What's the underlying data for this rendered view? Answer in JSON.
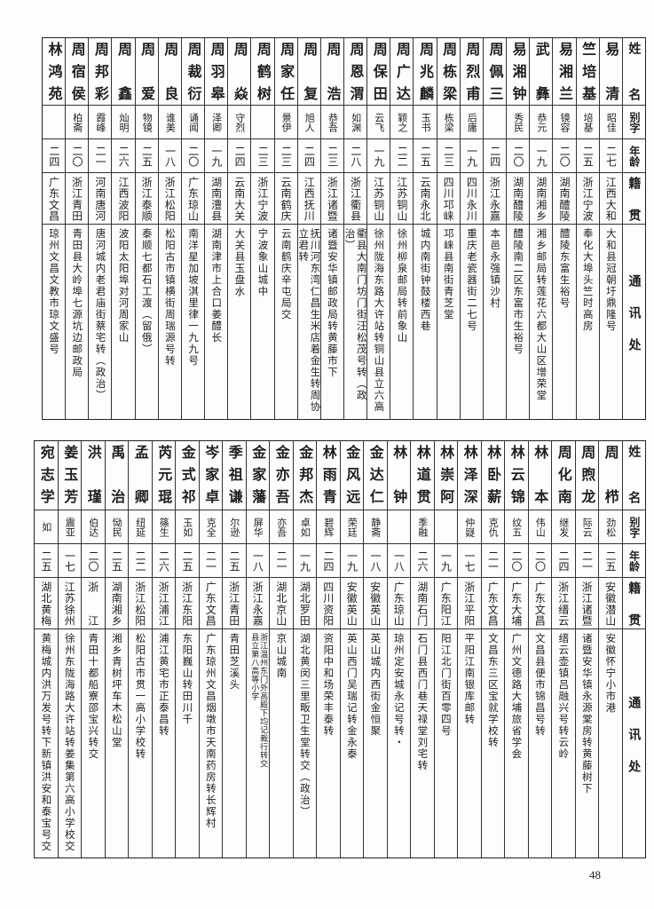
{
  "headers": {
    "name": "姓名",
    "alias": "别字",
    "age": "年龄",
    "native": "籍贯",
    "address": "通讯处"
  },
  "top_table": [
    {
      "name": "易清",
      "alias": "昭佳",
      "age": "二七",
      "native": "江西大和",
      "address": "大和县冠朝圩鼎隆号"
    },
    {
      "name": "竺培基",
      "alias": "培基",
      "age": "二五",
      "native": "浙江宁波",
      "address": "奉化大埠头竺时高房"
    },
    {
      "name": "易湘兰",
      "alias": "镜容",
      "age": "二〇",
      "native": "湖南醴陵",
      "address": "醴陵东富生裕号"
    },
    {
      "name": "武彝",
      "alias": "恭元",
      "age": "一九",
      "native": "湖南湘乡",
      "address": "湘乡邮局转莲花六都大山区增荣堂"
    },
    {
      "name": "易湘钟",
      "alias": "秀民",
      "age": "二〇",
      "native": "湖南醴陵",
      "address": "醴陵南二区东富市生裕号"
    },
    {
      "name": "周佩三",
      "alias": "",
      "age": "二四",
      "native": "浙江永嘉",
      "address": "本邑永强镇沙村"
    },
    {
      "name": "周烈甫",
      "alias": "后庸",
      "age": "一九",
      "native": "四川永川",
      "address": "重庆老瓷器街二七号"
    },
    {
      "name": "周栋梁",
      "alias": "栋梁",
      "age": "二三",
      "native": "四川邛崃",
      "address": "邛崃县南街青芝堂"
    },
    {
      "name": "周兆麟",
      "alias": "玉书",
      "age": "二五",
      "native": "云南永北",
      "address": "城内南街钟鼓楼西巷"
    },
    {
      "name": "周广达",
      "alias": "颖之",
      "age": "二二",
      "native": "江苏铜山",
      "address": "徐州柳泉邮局转前象山"
    },
    {
      "name": "周保田",
      "alias": "云飞",
      "age": "一九",
      "native": "江苏铜山",
      "address": "徐州陇海东路大许站转铜山县立六高"
    },
    {
      "name": "周恩渭",
      "alias": "如渊",
      "age": "二八",
      "native": "浙江衢县",
      "address": "衢县大南门坊门街汪松茂号转（政治）"
    },
    {
      "name": "周浩",
      "alias": "恭吾",
      "age": "二三",
      "native": "浙江诸暨",
      "address": "诸暨安华镇邮政局转黄藤市下"
    },
    {
      "name": "周复",
      "alias": "旭人",
      "age": "二四",
      "native": "江西抚川",
      "address": "抚川河东湾仁昌生米店着金生转周协立君转"
    },
    {
      "name": "周家任",
      "alias": "景伊",
      "age": "二三",
      "native": "云南鹤庆",
      "address": "云南鹤庆辛屯局交"
    },
    {
      "name": "周鹤树",
      "alias": "",
      "age": "二三",
      "native": "浙江宁波",
      "address": "宁波象山城中"
    },
    {
      "name": "周焱",
      "alias": "守烈",
      "age": "二四",
      "native": "云南大关",
      "address": "大关县玉盘水"
    },
    {
      "name": "周羽皋",
      "alias": "泽卿",
      "age": "一九",
      "native": "湖南澧县",
      "address": "湖南津市上合口姜醴长"
    },
    {
      "name": "周裁衍",
      "alias": "诵闻",
      "age": "二〇",
      "native": "广东琼山",
      "address": "南洋星加坡淇里律一九九号"
    },
    {
      "name": "周良",
      "alias": "谁美",
      "age": "一八",
      "native": "浙江松阳",
      "address": "松阳古市镇横街周瑞源号转"
    },
    {
      "name": "周爱",
      "alias": "物镜",
      "age": "二五",
      "native": "浙江泰顺",
      "address": "泰顺七都石工渡（留俄）"
    },
    {
      "name": "周鑫",
      "alias": "灿明",
      "age": "二六",
      "native": "江西波阳",
      "address": "波阳太阳埠对河周家山"
    },
    {
      "name": "周邦彩",
      "alias": "霞峰",
      "age": "二一",
      "native": "河南唐河",
      "address": "唐河城内老君庙街蔡宅转（政治）"
    },
    {
      "name": "周宿侯",
      "alias": "柏斋",
      "age": "二〇",
      "native": "浙江青田",
      "address": "青田县大岭埠七源坑边邮政局"
    },
    {
      "name": "林鸿苑",
      "alias": "",
      "age": "二四",
      "native": "广东文昌",
      "address": "琼州文昌文教市琼文盛号"
    }
  ],
  "bottom_table": [
    {
      "name": "周栉",
      "alias": "劲松",
      "age": "二五",
      "native": "安徽潜山",
      "address": "安徽怀宁小市港"
    },
    {
      "name": "周煦龙",
      "alias": "际云",
      "age": "二一",
      "native": "浙江诸暨",
      "address": "诸暨安华镇永源棠房转黄藤树下"
    },
    {
      "name": "周化南",
      "alias": "继发",
      "age": "二四",
      "native": "浙江缙云",
      "address": "缙云壶镇吕融兴号转云岭"
    },
    {
      "name": "林本",
      "alias": "伟山",
      "age": "二〇",
      "native": "广东文昌",
      "address": "文昌县便市锦昌号转"
    },
    {
      "name": "林云锦",
      "alias": "纹五",
      "age": "二〇",
      "native": "广东大埔",
      "address": "广州文德路大埔旅省学会"
    },
    {
      "name": "林卧薪",
      "alias": "克仇",
      "age": "二一",
      "native": "广东文昌",
      "address": "文昌东三区宝就学校转"
    },
    {
      "name": "林泽深",
      "alias": "仲嶷",
      "age": "一七",
      "native": "浙江平阳",
      "address": "平阳江南银库邮转"
    },
    {
      "name": "林崇阿",
      "alias": "",
      "age": "一九",
      "native": "广东阳江",
      "address": "阳江北门街百零四号"
    },
    {
      "name": "林道贯",
      "alias": "季融",
      "age": "二六",
      "native": "湖南石门",
      "address": "石门县西门巷天禄堂刘宅转"
    },
    {
      "name": "林钟",
      "alias": "",
      "age": "一八",
      "native": "广东琼山",
      "address": "琼州定安城永记号转・"
    },
    {
      "name": "金达仁",
      "alias": "静斋",
      "age": "一八",
      "native": "安徽英山",
      "address": "英山城内西街金恒聚"
    },
    {
      "name": "金风远",
      "alias": "荣廷",
      "age": "一九",
      "native": "安徽英山",
      "address": "英山西门吴瑞记转金永泰"
    },
    {
      "name": "林雨青",
      "alias": "碧辉",
      "age": "二四",
      "native": "四川资阳",
      "address": "资阳中和场荣丰泰转"
    },
    {
      "name": "金邦杰",
      "alias": "卓如",
      "age": "一九",
      "native": "湖北罗田",
      "address": "湖北黄闵三里畈卫生堂转交（政治）"
    },
    {
      "name": "金亦吾",
      "alias": "亦吾",
      "age": "二一",
      "native": "湖北京山",
      "address": "京山城南"
    },
    {
      "name": "金家藩",
      "alias": "屏华",
      "age": "一八",
      "native": "浙江永嘉",
      "address": "浙江温州东门外高殿下均记裁行转交\n县立第八高等小学"
    },
    {
      "name": "季祖谦",
      "alias": "尔逊",
      "age": "二五",
      "native": "浙江青田",
      "address": "青田芝溪头"
    },
    {
      "name": "岑家卓",
      "alias": "克全",
      "age": "二一",
      "native": "广东文昌",
      "address": "广东琼州文昌烟墩市天南药房转长辉村"
    },
    {
      "name": "金式祁",
      "alias": "玉如",
      "age": "二五",
      "native": "浙江东阳",
      "address": "东阳巍山转田川千"
    },
    {
      "name": "芮元琨",
      "alias": "篠生",
      "age": "二六",
      "native": "浙江浦江",
      "address": "浦江黄宅市正泰昌转"
    },
    {
      "name": "孟卿",
      "alias": "纽延",
      "age": "二二",
      "native": "浙江松阳",
      "address": "松阳古市贯一高小学校转"
    },
    {
      "name": "禹治",
      "alias": "恸民",
      "age": "二五",
      "native": "湖南湘乡",
      "address": "湘乡青树坪车木松山堂"
    },
    {
      "name": "洪瑾",
      "alias": "伯达",
      "age": "二〇",
      "native": "浙江",
      "address": "青田十都船寮邵宝兴转交"
    },
    {
      "name": "姜玉芳",
      "alias": "震亚",
      "age": "一七",
      "native": "江苏徐州",
      "address": "徐州东陇海路大许站转姜集第六高小学校交"
    },
    {
      "name": "宛志学",
      "alias": "如",
      "age": "二五",
      "native": "湖北黄梅",
      "address": "黄梅城内洪万发号转下新镇洪安和泰宝号交"
    }
  ],
  "page_number": "48"
}
